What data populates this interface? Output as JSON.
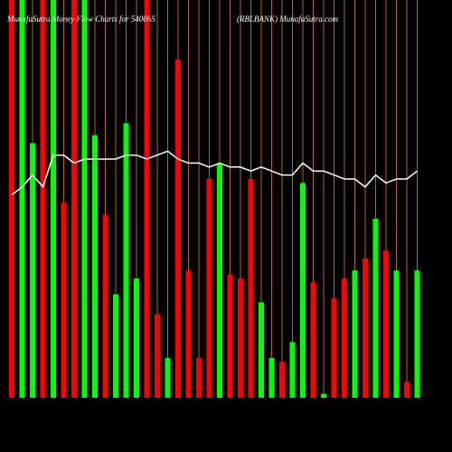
{
  "chart_data": {
    "type": "bar",
    "title": "MunafaSutra  Money Flow  Charts for 540065",
    "subtitle": "(RBLBANK) MunafaSutra.com",
    "background": "#000000",
    "grid": true,
    "grid_color": "#b5651d",
    "categories": [
      null,
      null,
      null,
      null,
      null,
      null,
      null,
      null,
      null,
      null,
      null,
      null,
      null,
      null,
      null,
      null,
      null,
      null,
      null,
      null,
      null,
      null,
      null,
      null,
      null,
      null,
      null,
      null,
      null,
      null,
      null,
      null,
      null,
      null,
      null,
      null,
      null,
      null,
      null,
      null
    ],
    "values": [
      100,
      100,
      64,
      100,
      100,
      49,
      100,
      100,
      66,
      46,
      26,
      69,
      30,
      100,
      21,
      10,
      85,
      32,
      10,
      55,
      59,
      31,
      30,
      55,
      24,
      10,
      9,
      14,
      54,
      29,
      1,
      25,
      30,
      32,
      35,
      45,
      37,
      32,
      4,
      32
    ],
    "colors": [
      "#ff0000",
      "#00ff00",
      "#00ff00",
      "#ff0000",
      "#00ff00",
      "#ff0000",
      "#ff0000",
      "#00ff00",
      "#00ff00",
      "#ff0000",
      "#00ff00",
      "#00ff00",
      "#00ff00",
      "#ff0000",
      "#ff0000",
      "#00ff00",
      "#ff0000",
      "#ff0000",
      "#ff0000",
      "#ff0000",
      "#00ff00",
      "#ff0000",
      "#ff0000",
      "#ff0000",
      "#00ff00",
      "#00ff00",
      "#ff0000",
      "#00ff00",
      "#00ff00",
      "#ff0000",
      "#00ff00",
      "#ff0000",
      "#ff0000",
      "#00ff00",
      "#ff0000",
      "#00ff00",
      "#ff0000",
      "#00ff00",
      "#ff0000",
      "#00ff00"
    ],
    "line": {
      "color": "#ffffff",
      "values": [
        51,
        53,
        56,
        53,
        61,
        61,
        59,
        60,
        60,
        60,
        60,
        61,
        61,
        60,
        61,
        62,
        60,
        59,
        59,
        58,
        59,
        58,
        58,
        57,
        58,
        57,
        56,
        56,
        59,
        57,
        57,
        56,
        55,
        55,
        53,
        56,
        54,
        55,
        55,
        57
      ]
    },
    "ylim": [
      0,
      100
    ]
  }
}
